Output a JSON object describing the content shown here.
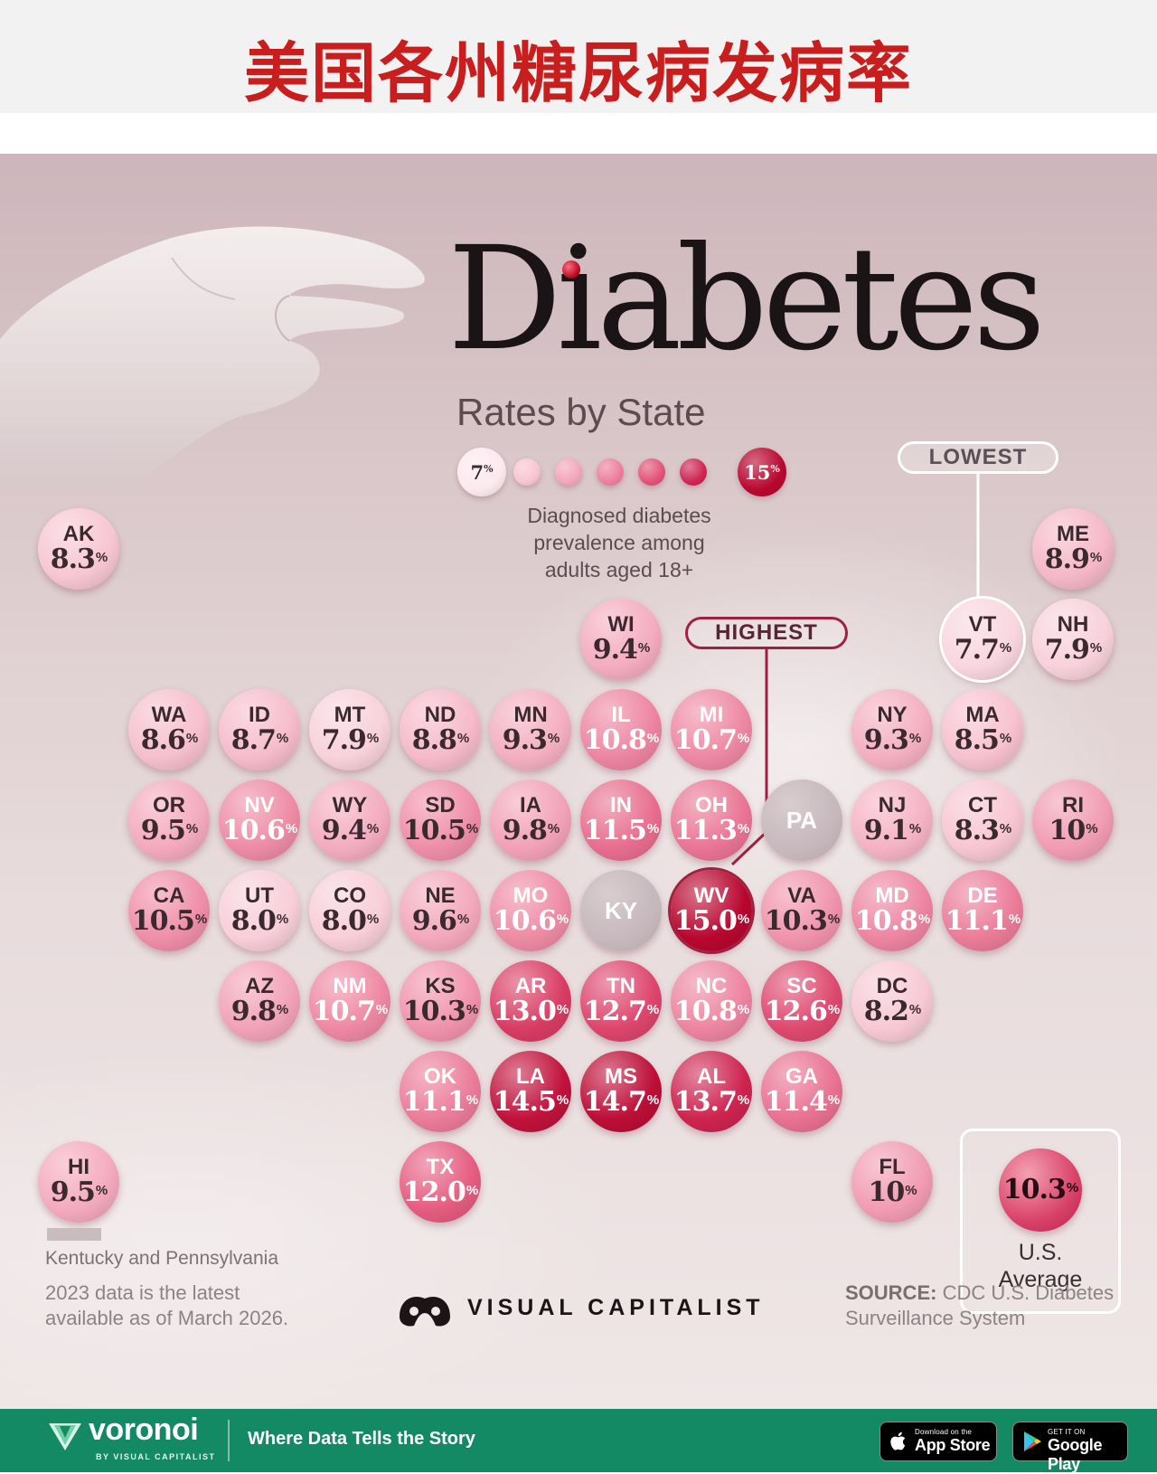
{
  "header_title": "美国各州糖尿病发病率",
  "title": "Diabetes",
  "subtitle": "Rates by State",
  "legend": {
    "min_label": "7",
    "max_label": "15",
    "percent_sign": "%",
    "caption_lines": [
      "Diagnosed diabetes",
      "prevalence among",
      "adults aged 18+"
    ],
    "colors": [
      "#fbe9ee",
      "#f7c5d2",
      "#f3a6bb",
      "#ec7f9c",
      "#e25277",
      "#cf2551",
      "#b8072f"
    ]
  },
  "callouts": {
    "lowest": "LOWEST",
    "highest": "HIGHEST"
  },
  "percent_sign": "%",
  "states": [
    {
      "abbr": "AK",
      "rate": "8.3",
      "value": 8.3
    },
    {
      "abbr": "ME",
      "rate": "8.9",
      "value": 8.9
    },
    {
      "abbr": "WI",
      "rate": "9.4",
      "value": 9.4
    },
    {
      "abbr": "VT",
      "rate": "7.7",
      "value": 7.7
    },
    {
      "abbr": "NH",
      "rate": "7.9",
      "value": 7.9
    },
    {
      "abbr": "WA",
      "rate": "8.6",
      "value": 8.6
    },
    {
      "abbr": "ID",
      "rate": "8.7",
      "value": 8.7
    },
    {
      "abbr": "MT",
      "rate": "7.9",
      "value": 7.9
    },
    {
      "abbr": "ND",
      "rate": "8.8",
      "value": 8.8
    },
    {
      "abbr": "MN",
      "rate": "9.3",
      "value": 9.3
    },
    {
      "abbr": "IL",
      "rate": "10.8",
      "value": 10.8
    },
    {
      "abbr": "MI",
      "rate": "10.7",
      "value": 10.7
    },
    {
      "abbr": "NY",
      "rate": "9.3",
      "value": 9.3
    },
    {
      "abbr": "MA",
      "rate": "8.5",
      "value": 8.5
    },
    {
      "abbr": "OR",
      "rate": "9.5",
      "value": 9.5
    },
    {
      "abbr": "NV",
      "rate": "10.6",
      "value": 10.6
    },
    {
      "abbr": "WY",
      "rate": "9.4",
      "value": 9.4
    },
    {
      "abbr": "SD",
      "rate": "10.5",
      "value": 10.5
    },
    {
      "abbr": "IA",
      "rate": "9.8",
      "value": 9.8
    },
    {
      "abbr": "IN",
      "rate": "11.5",
      "value": 11.5
    },
    {
      "abbr": "OH",
      "rate": "11.3",
      "value": 11.3
    },
    {
      "abbr": "PA",
      "rate": "",
      "value": null
    },
    {
      "abbr": "NJ",
      "rate": "9.1",
      "value": 9.1
    },
    {
      "abbr": "CT",
      "rate": "8.3",
      "value": 8.3
    },
    {
      "abbr": "RI",
      "rate": "10",
      "value": 10.0
    },
    {
      "abbr": "CA",
      "rate": "10.5",
      "value": 10.5
    },
    {
      "abbr": "UT",
      "rate": "8.0",
      "value": 8.0
    },
    {
      "abbr": "CO",
      "rate": "8.0",
      "value": 8.0
    },
    {
      "abbr": "NE",
      "rate": "9.6",
      "value": 9.6
    },
    {
      "abbr": "MO",
      "rate": "10.6",
      "value": 10.6
    },
    {
      "abbr": "KY",
      "rate": "",
      "value": null
    },
    {
      "abbr": "WV",
      "rate": "15.0",
      "value": 15.0
    },
    {
      "abbr": "VA",
      "rate": "10.3",
      "value": 10.3
    },
    {
      "abbr": "MD",
      "rate": "10.8",
      "value": 10.8
    },
    {
      "abbr": "DE",
      "rate": "11.1",
      "value": 11.1
    },
    {
      "abbr": "AZ",
      "rate": "9.8",
      "value": 9.8
    },
    {
      "abbr": "NM",
      "rate": "10.7",
      "value": 10.7
    },
    {
      "abbr": "KS",
      "rate": "10.3",
      "value": 10.3
    },
    {
      "abbr": "AR",
      "rate": "13.0",
      "value": 13.0
    },
    {
      "abbr": "TN",
      "rate": "12.7",
      "value": 12.7
    },
    {
      "abbr": "NC",
      "rate": "10.8",
      "value": 10.8
    },
    {
      "abbr": "SC",
      "rate": "12.6",
      "value": 12.6
    },
    {
      "abbr": "DC",
      "rate": "8.2",
      "value": 8.2
    },
    {
      "abbr": "OK",
      "rate": "11.1",
      "value": 11.1
    },
    {
      "abbr": "LA",
      "rate": "14.5",
      "value": 14.5
    },
    {
      "abbr": "MS",
      "rate": "14.7",
      "value": 14.7
    },
    {
      "abbr": "AL",
      "rate": "13.7",
      "value": 13.7
    },
    {
      "abbr": "GA",
      "rate": "11.4",
      "value": 11.4
    },
    {
      "abbr": "HI",
      "rate": "9.5",
      "value": 9.5
    },
    {
      "abbr": "TX",
      "rate": "12.0",
      "value": 12.0
    },
    {
      "abbr": "FL",
      "rate": "10",
      "value": 10.0
    }
  ],
  "us_average": {
    "rate": "10.3",
    "value": 10.3,
    "label_lines": [
      "U.S.",
      "Average"
    ]
  },
  "notes": {
    "nodata_label": "Kentucky and Pennsylvania",
    "data_note_lines": [
      "2023 data is the latest",
      "available as of March 2026."
    ],
    "source_label": "SOURCE:",
    "source_text_lines": [
      "CDC U.S. Diabetes",
      "Surveillance System"
    ]
  },
  "brand": {
    "visual_capitalist": "VISUAL CAPITALIST"
  },
  "footer": {
    "brand": "voronoi",
    "brand_sub": "BY VISUAL CAPITALIST",
    "tagline": "Where Data Tells the Story",
    "app_store_small": "Download on the",
    "app_store": "App Store",
    "google_play_small": "GET IT ON",
    "google_play": "Google Play"
  }
}
